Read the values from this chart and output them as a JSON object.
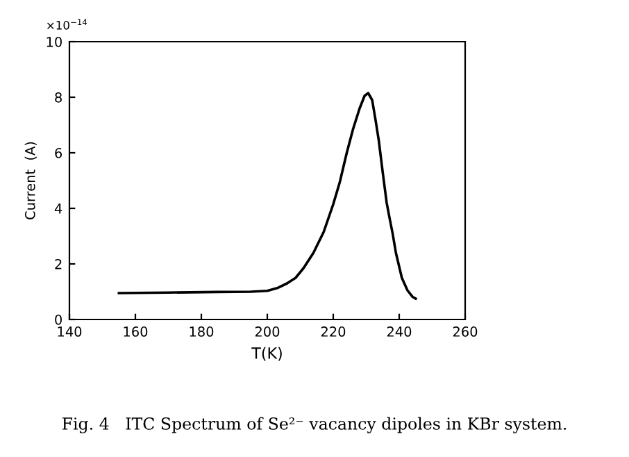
{
  "chart_data": {
    "type": "line",
    "xlabel": "T(K)",
    "ylabel": "Current  (A)",
    "annotations": [
      "×10$^{−14}$",
      "Fig. 4   ITC Spectrum of Se²⁻ vacancy dipoles in KBr system."
    ],
    "x": [
      155,
      170,
      185,
      195,
      200,
      203,
      206,
      208.6,
      211,
      214,
      217.1,
      220,
      222,
      224.1,
      226,
      228,
      229.5,
      230.6,
      231.8,
      232.8,
      233.8,
      235,
      236.2,
      237,
      238,
      239,
      240.8,
      242.5,
      244,
      245
    ],
    "series": [
      {
        "color": "#000000",
        "values": [
          0.95,
          0.97,
          0.99,
          1.0,
          1.03,
          1.13,
          1.3,
          1.5,
          1.85,
          2.4,
          3.15,
          4.15,
          4.95,
          6.0,
          6.85,
          7.6,
          8.05,
          8.15,
          7.9,
          7.2,
          6.45,
          5.3,
          4.2,
          3.7,
          3.1,
          2.4,
          1.5,
          1.05,
          0.82,
          0.75
        ]
      }
    ],
    "xlim": [
      140,
      260
    ],
    "ylim": [
      0,
      10
    ],
    "xticks": [
      140,
      160,
      180,
      200,
      220,
      240,
      260
    ],
    "yticks": [
      0,
      2,
      4,
      6,
      8,
      10
    ],
    "grid": false,
    "legend": false,
    "marker": "none",
    "line_style": "solid"
  }
}
